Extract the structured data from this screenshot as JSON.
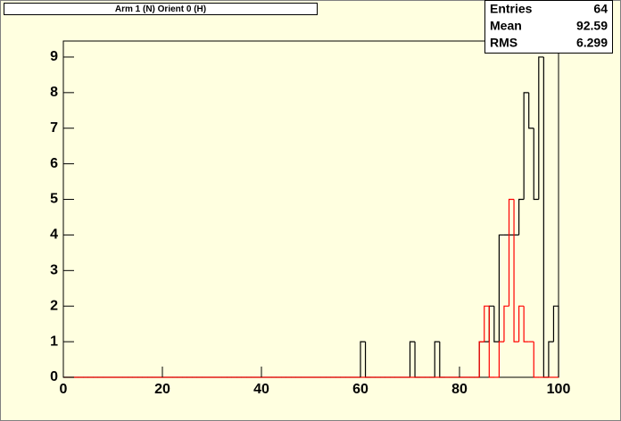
{
  "chart_data": {
    "type": "histogram",
    "title": "Arm 1 (N) Orient 0 (H)",
    "bins": [
      0,
      1,
      2,
      3,
      4,
      5,
      6,
      7,
      8,
      9,
      10,
      11,
      12,
      13,
      14,
      15,
      16,
      17,
      18,
      19,
      20,
      21,
      22,
      23,
      24,
      25,
      26,
      27,
      28,
      29,
      30,
      31,
      32,
      33,
      34,
      35,
      36,
      37,
      38,
      39,
      40,
      41,
      42,
      43,
      44,
      45,
      46,
      47,
      48,
      49,
      50,
      51,
      52,
      53,
      54,
      55,
      56,
      57,
      58,
      59,
      60,
      61,
      62,
      63,
      64,
      65,
      66,
      67,
      68,
      69,
      70,
      71,
      72,
      73,
      74,
      75,
      76,
      77,
      78,
      79,
      80,
      81,
      82,
      83,
      84,
      85,
      86,
      87,
      88,
      89,
      90,
      91,
      92,
      93,
      94,
      95,
      96,
      97,
      98,
      99,
      100
    ],
    "series": [
      {
        "color": "#000000",
        "values": [
          0,
          0,
          0,
          0,
          0,
          0,
          0,
          0,
          0,
          0,
          0,
          0,
          0,
          0,
          0,
          0,
          0,
          0,
          0,
          0,
          0,
          0,
          0,
          0,
          0,
          0,
          0,
          0,
          0,
          0,
          0,
          0,
          0,
          0,
          0,
          0,
          0,
          0,
          0,
          0,
          0,
          0,
          0,
          0,
          0,
          0,
          0,
          0,
          0,
          0,
          0,
          0,
          0,
          0,
          0,
          0,
          0,
          0,
          0,
          0,
          1,
          0,
          0,
          0,
          0,
          0,
          0,
          0,
          0,
          0,
          1,
          0,
          0,
          0,
          0,
          1,
          0,
          0,
          0,
          0,
          0,
          0,
          0,
          0,
          1,
          1,
          2,
          1,
          4,
          4,
          4,
          4,
          5,
          8,
          7,
          5,
          9,
          0,
          1,
          2
        ]
      },
      {
        "color": "#ff0000",
        "values": [
          0,
          0,
          0,
          0,
          0,
          0,
          0,
          0,
          0,
          0,
          0,
          0,
          0,
          0,
          0,
          0,
          0,
          0,
          0,
          0,
          0,
          0,
          0,
          0,
          0,
          0,
          0,
          0,
          0,
          0,
          0,
          0,
          0,
          0,
          0,
          0,
          0,
          0,
          0,
          0,
          0,
          0,
          0,
          0,
          0,
          0,
          0,
          0,
          0,
          0,
          0,
          0,
          0,
          0,
          0,
          0,
          0,
          0,
          0,
          0,
          0,
          0,
          0,
          0,
          0,
          0,
          0,
          0,
          0,
          0,
          0,
          0,
          0,
          0,
          0,
          0,
          0,
          0,
          0,
          0,
          0,
          0,
          0,
          0,
          1,
          2,
          0,
          0,
          1,
          2,
          5,
          1,
          2,
          1,
          1,
          0,
          0,
          0,
          0,
          0
        ]
      }
    ],
    "xlim": [
      0,
      100
    ],
    "ylim": [
      0,
      9.45
    ],
    "xticks": [
      0,
      20,
      40,
      60,
      80,
      100
    ],
    "yticks": [
      0,
      1,
      2,
      3,
      4,
      5,
      6,
      7,
      8,
      9
    ],
    "stats": [
      {
        "label": "Entries",
        "value": 64
      },
      {
        "label": "Mean",
        "value": 92.59
      },
      {
        "label": "RMS",
        "value": 6.299
      }
    ]
  }
}
